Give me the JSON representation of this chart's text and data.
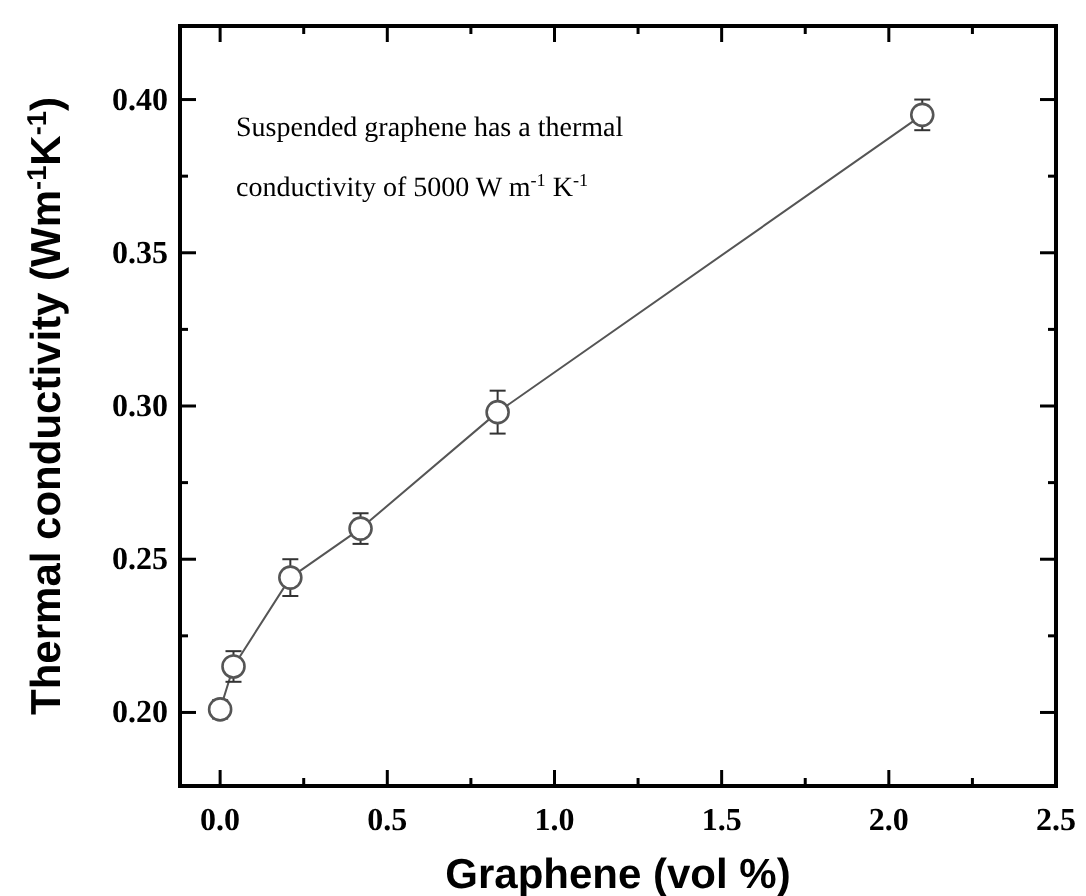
{
  "chart_data": {
    "type": "line",
    "xlabel": "Graphene (vol %)",
    "ylabel": "Thermal conductivity (Wm$^{-1}$K$^{-1}$)",
    "annotations": [
      "Suspended graphene has a thermal conductivity of 5000 W m$^{-1}$ K$^{-1}$"
    ],
    "xlim": [
      -0.12,
      2.5
    ],
    "ylim": [
      0.176,
      0.424
    ],
    "xticks": [
      {
        "value": 0,
        "label": "0.0"
      },
      {
        "value": 0.25,
        "label": null
      },
      {
        "value": 0.5,
        "label": "0.5"
      },
      {
        "value": 0.75,
        "label": null
      },
      {
        "value": 1,
        "label": "1.0"
      },
      {
        "value": 1.25,
        "label": null
      },
      {
        "value": 1.5,
        "label": "1.5"
      },
      {
        "value": 1.75,
        "label": null
      },
      {
        "value": 2,
        "label": "2.0"
      },
      {
        "value": 2.25,
        "label": null
      },
      {
        "value": 2.5,
        "label": "2.5"
      }
    ],
    "yticks": [
      {
        "value": 0.2,
        "label": "0.20"
      },
      {
        "value": 0.225,
        "label": null
      },
      {
        "value": 0.25,
        "label": "0.25"
      },
      {
        "value": 0.275,
        "label": null
      },
      {
        "value": 0.3,
        "label": "0.30"
      },
      {
        "value": 0.325,
        "label": null
      },
      {
        "value": 0.35,
        "label": "0.35"
      },
      {
        "value": 0.375,
        "label": null
      },
      {
        "value": 0.4,
        "label": "0.40"
      }
    ],
    "grid": false,
    "marker": "circle",
    "line_style": "solid",
    "series": [
      {
        "color": "#555555",
        "x": [
          0,
          0.04,
          0.21,
          0.42,
          0.83,
          2.1
        ],
        "values": [
          0.201,
          0.215,
          0.244,
          0.26,
          0.298,
          0.395
        ],
        "errors": [
          0.003,
          0.005,
          0.006,
          0.005,
          0.007,
          0.005
        ]
      }
    ]
  }
}
